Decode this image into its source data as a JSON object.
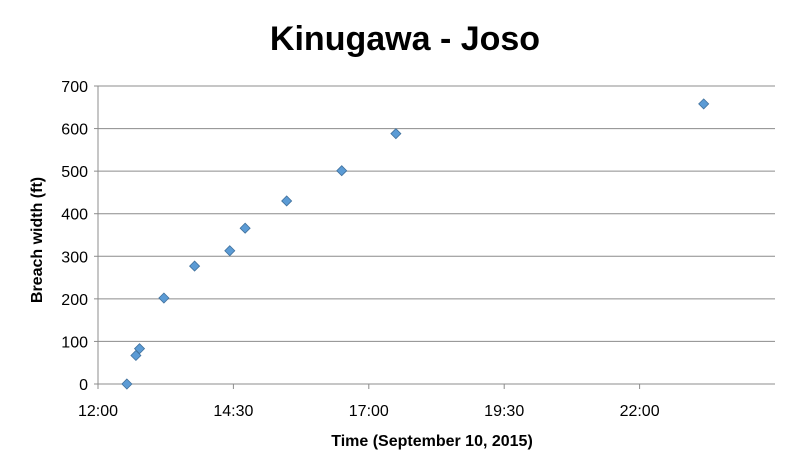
{
  "chart_data": {
    "type": "scatter",
    "title": "Kinugawa - Joso",
    "xlabel": "Time (September 10, 2015)",
    "ylabel": "Breach width (ft)",
    "xlim": [
      "12:00",
      "24:30"
    ],
    "ylim": [
      0,
      700
    ],
    "x_ticks": [
      "12:00",
      "14:30",
      "17:00",
      "19:30",
      "22:00"
    ],
    "y_ticks": [
      0,
      100,
      200,
      300,
      400,
      500,
      600,
      700
    ],
    "grid": true,
    "marker": "diamond",
    "color": "#5b9bd5",
    "points": [
      {
        "x": "12:32",
        "y": 0
      },
      {
        "x": "12:42",
        "y": 67
      },
      {
        "x": "12:46",
        "y": 83
      },
      {
        "x": "13:13",
        "y": 202
      },
      {
        "x": "13:47",
        "y": 277
      },
      {
        "x": "14:26",
        "y": 313
      },
      {
        "x": "14:43",
        "y": 366
      },
      {
        "x": "15:29",
        "y": 430
      },
      {
        "x": "16:30",
        "y": 501
      },
      {
        "x": "17:30",
        "y": 588
      },
      {
        "x": "23:11",
        "y": 658
      }
    ]
  }
}
